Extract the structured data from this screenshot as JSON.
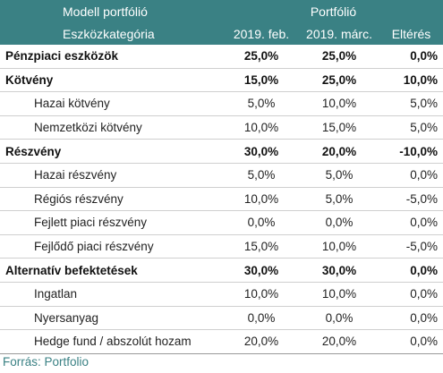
{
  "header": {
    "top_left": "Modell portfólió",
    "top_right": "Portfólió",
    "category": "Eszközkategória",
    "col_feb": "2019. feb.",
    "col_mar": "2019. márc.",
    "col_diff": "Eltérés"
  },
  "rows": [
    {
      "label": "Pénzpiaci eszközök",
      "feb": "25,0%",
      "mar": "25,0%",
      "diff": "0,0%",
      "bold": true
    },
    {
      "label": "Kötvény",
      "feb": "15,0%",
      "mar": "25,0%",
      "diff": "10,0%",
      "bold": true
    },
    {
      "label": "Hazai kötvény",
      "feb": "5,0%",
      "mar": "10,0%",
      "diff": "5,0%",
      "bold": false
    },
    {
      "label": "Nemzetközi kötvény",
      "feb": "10,0%",
      "mar": "15,0%",
      "diff": "5,0%",
      "bold": false
    },
    {
      "label": "Részvény",
      "feb": "30,0%",
      "mar": "20,0%",
      "diff": "-10,0%",
      "bold": true
    },
    {
      "label": "Hazai részvény",
      "feb": "5,0%",
      "mar": "5,0%",
      "diff": "0,0%",
      "bold": false
    },
    {
      "label": "Régiós részvény",
      "feb": "10,0%",
      "mar": "5,0%",
      "diff": "-5,0%",
      "bold": false
    },
    {
      "label": "Fejlett piaci részvény",
      "feb": "0,0%",
      "mar": "0,0%",
      "diff": "0,0%",
      "bold": false
    },
    {
      "label": "Fejlődő piaci részvény",
      "feb": "15,0%",
      "mar": "10,0%",
      "diff": "-5,0%",
      "bold": false
    },
    {
      "label": "Alternatív befektetések",
      "feb": "30,0%",
      "mar": "30,0%",
      "diff": "0,0%",
      "bold": true
    },
    {
      "label": "Ingatlan",
      "feb": "10,0%",
      "mar": "10,0%",
      "diff": "0,0%",
      "bold": false
    },
    {
      "label": "Nyersanyag",
      "feb": "0,0%",
      "mar": "0,0%",
      "diff": "0,0%",
      "bold": false
    },
    {
      "label": "Hedge fund / abszolút hozam",
      "feb": "20,0%",
      "mar": "20,0%",
      "diff": "0,0%",
      "bold": false
    }
  ],
  "source": "Forrás: Portfolio",
  "colors": {
    "header_bg": "#3a8184",
    "source_text": "#3a8184"
  }
}
